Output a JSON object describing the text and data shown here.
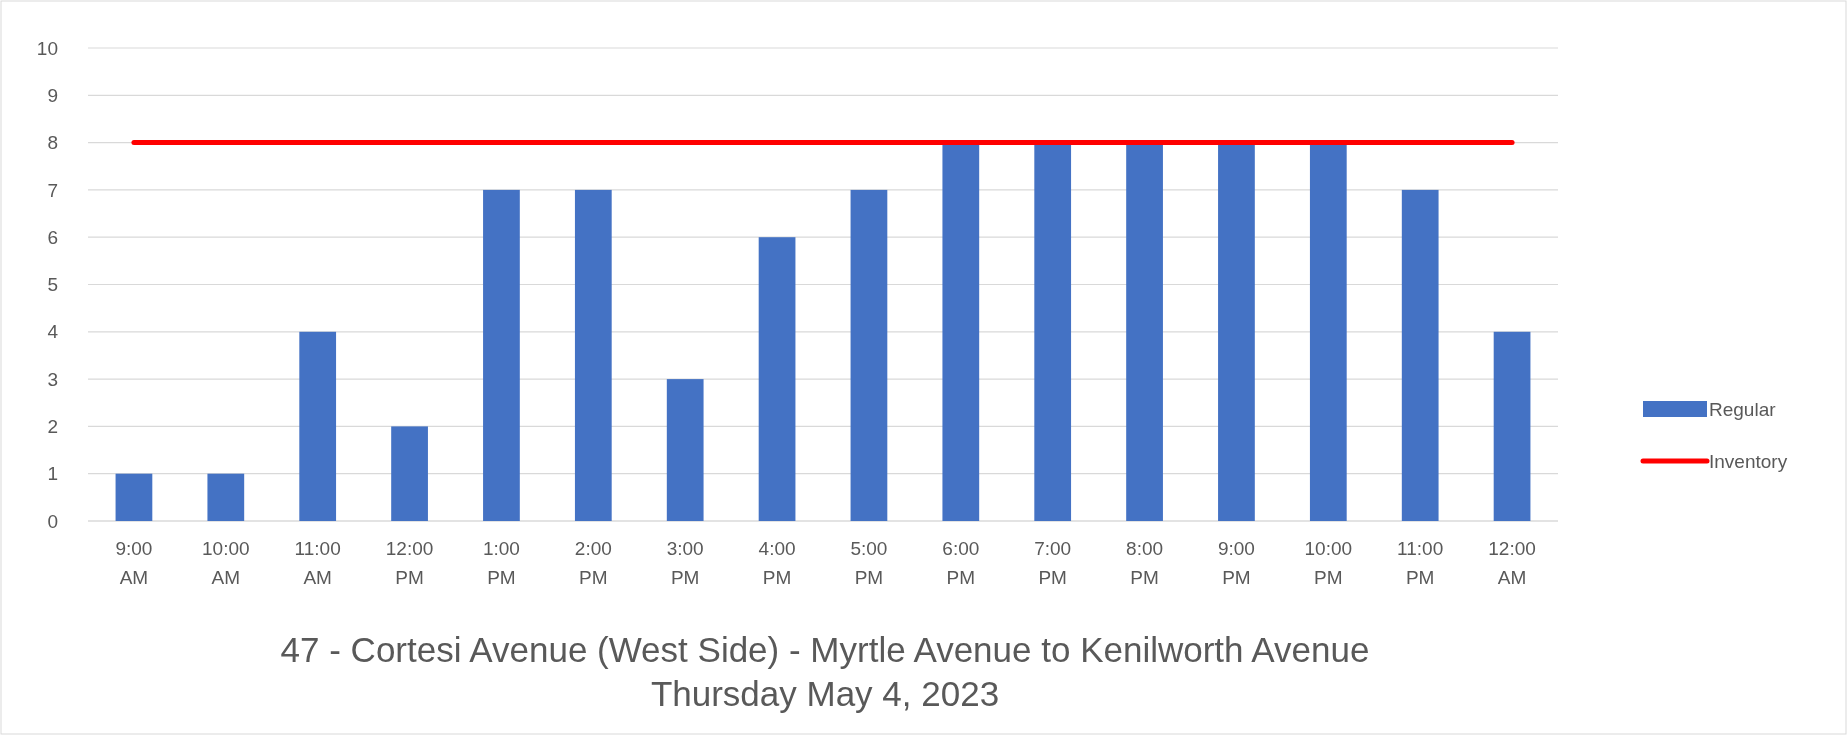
{
  "chart_data": {
    "type": "bar",
    "title": "47 - Cortesi Avenue (West Side) - Myrtle Avenue to Kenilworth Avenue",
    "subtitle": "Thursday May 4, 2023",
    "categories": [
      "9:00 AM",
      "10:00 AM",
      "11:00 AM",
      "12:00 PM",
      "1:00 PM",
      "2:00 PM",
      "3:00 PM",
      "4:00 PM",
      "5:00 PM",
      "6:00 PM",
      "7:00 PM",
      "8:00 PM",
      "9:00 PM",
      "10:00 PM",
      "11:00 PM",
      "12:00 AM"
    ],
    "series": [
      {
        "name": "Regular",
        "color": "#4472c4",
        "values": [
          1,
          1,
          4,
          2,
          7,
          7,
          3,
          6,
          7,
          8,
          8,
          8,
          8,
          8,
          7,
          4
        ]
      },
      {
        "name": "Inventory",
        "type": "line",
        "color": "#ff0000",
        "values": [
          8,
          8,
          8,
          8,
          8,
          8,
          8,
          8,
          8,
          8,
          8,
          8,
          8,
          8,
          8,
          8
        ]
      }
    ],
    "ylim": [
      0,
      10
    ],
    "yticks": [
      0,
      1,
      2,
      3,
      4,
      5,
      6,
      7,
      8,
      9,
      10
    ],
    "grid": "y",
    "legend": "right",
    "marker": "none"
  }
}
